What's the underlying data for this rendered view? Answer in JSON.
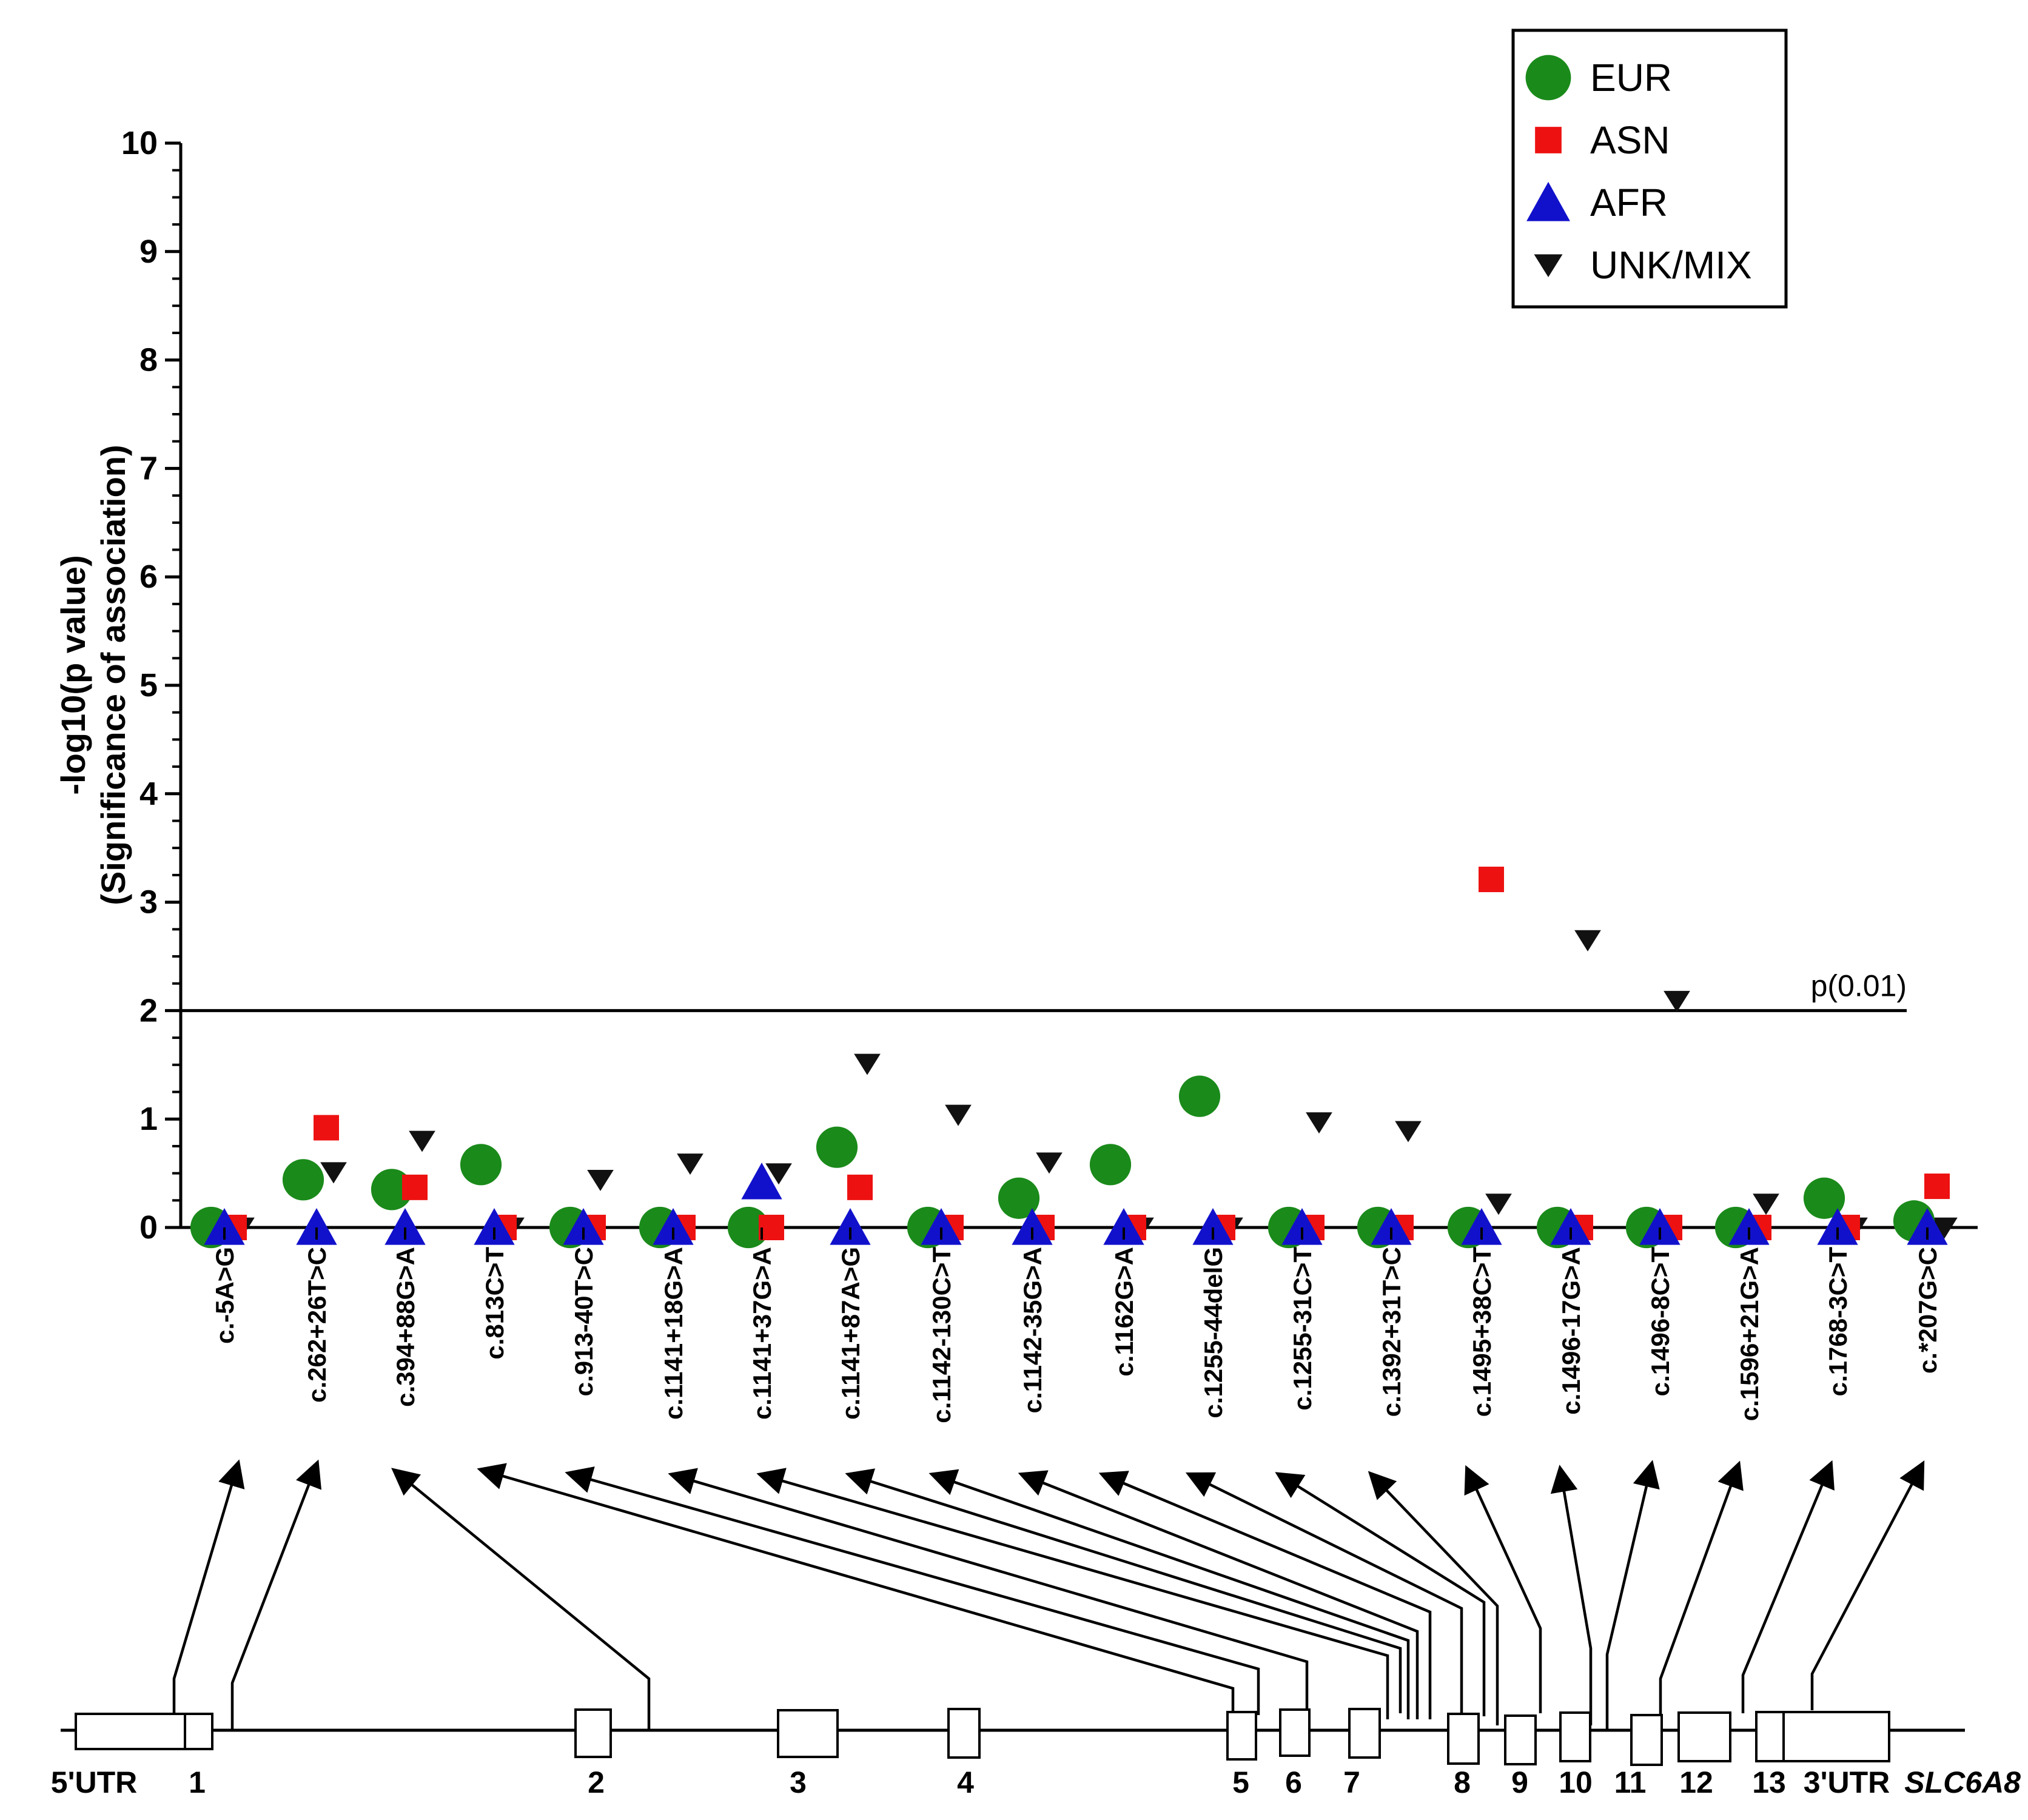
{
  "chart_data": {
    "type": "scatter",
    "title": "",
    "ylabel_line1": "-log10(p value)",
    "ylabel_line2": "(Significance of association)",
    "ylim": [
      0,
      10
    ],
    "yticks": [
      "0",
      "1",
      "2",
      "3",
      "4",
      "5",
      "6",
      "7",
      "8",
      "9",
      "10"
    ],
    "threshold": {
      "value": 2,
      "label": "p(0.01)"
    },
    "categories": [
      "c.-5A>G",
      "c.262+26T>C",
      "c.394+88G>A",
      "c.813C>T",
      "c.913-40T>C",
      "c.1141+18G>A",
      "c.1141+37G>A",
      "c.1141+87A>G",
      "c.1142-130C>T",
      "c.1142-35G>A",
      "c.1162G>A",
      "c.1255-44delG",
      "c.1255-31C>T",
      "c.1392+31T>C",
      "c.1495+38C>T",
      "c.1496-17G>A",
      "c.1496-8C>T",
      "c.1596+21G>A",
      "c.1768-3C>T",
      "c.*207G>C"
    ],
    "legend_position": "top-right",
    "series": [
      {
        "name": "EUR",
        "marker": "circle",
        "color": "#1a8a1a",
        "values": [
          0,
          0.44,
          0.35,
          0.58,
          0,
          0,
          0,
          0.74,
          0,
          0.27,
          0.58,
          1.21,
          0,
          0,
          0,
          0,
          0,
          0,
          0.27,
          0.06
        ]
      },
      {
        "name": "ASN",
        "marker": "square",
        "color": "#ee1111",
        "values": [
          0,
          0.92,
          0.37,
          0,
          0,
          0,
          0,
          0.37,
          0,
          0,
          0,
          0,
          0,
          0,
          3.21,
          0,
          0,
          0,
          0,
          0.38
        ]
      },
      {
        "name": "AFR",
        "marker": "triangle-up",
        "color": "#1111cc",
        "values": [
          0,
          0,
          0,
          0,
          0,
          0,
          0.42,
          0,
          0,
          0,
          0,
          0,
          0,
          0,
          0,
          0,
          0,
          0,
          0,
          0
        ]
      },
      {
        "name": "UNK/MIX",
        "marker": "triangle-down",
        "color": "#111111",
        "values": [
          0,
          0.51,
          0.8,
          0,
          0.44,
          0.59,
          0.5,
          1.51,
          1.04,
          0.6,
          0,
          0,
          0.97,
          0.89,
          0.22,
          2.65,
          2.09,
          0.22,
          0,
          0
        ]
      }
    ]
  },
  "gene": {
    "name": "SLC6A8",
    "labels": [
      "5'UTR",
      "1",
      "2",
      "3",
      "4",
      "5",
      "6",
      "7",
      "8",
      "9",
      "10",
      "11",
      "12",
      "13",
      "3'UTR"
    ]
  }
}
